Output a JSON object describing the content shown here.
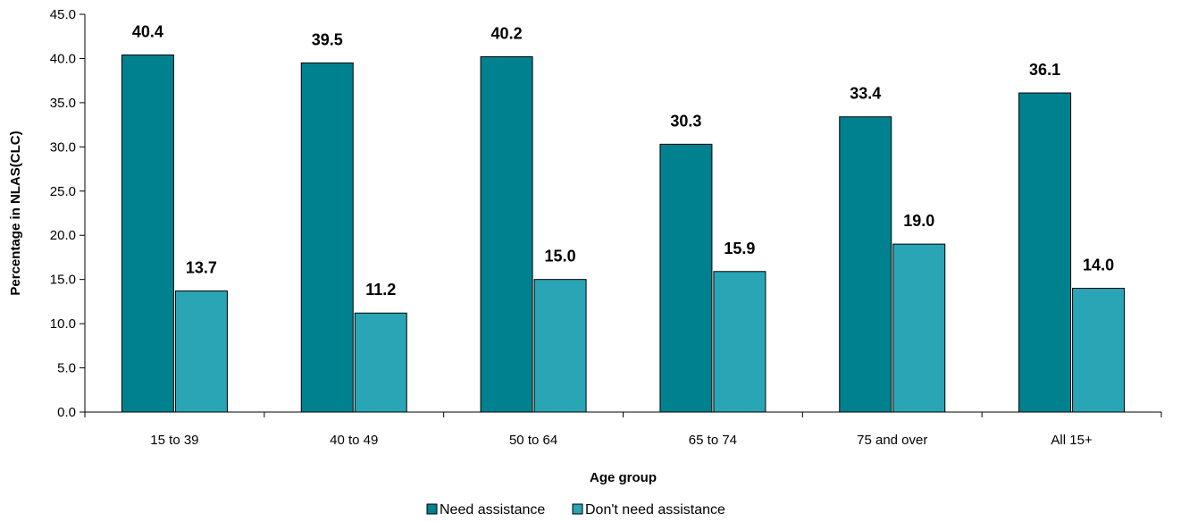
{
  "chart_data": {
    "type": "bar",
    "title": "",
    "xlabel": "Age group",
    "ylabel": "Percentage in NLAS(CLC)",
    "categories": [
      "15 to 39",
      "40 to 49",
      "50 to 64",
      "65 to 74",
      "75 and over",
      "All 15+"
    ],
    "series": [
      {
        "name": "Need assistance",
        "color": "#00818f",
        "values": [
          40.4,
          39.5,
          40.2,
          30.3,
          33.4,
          36.1
        ]
      },
      {
        "name": "Don't need assistance",
        "color": "#2aa5b5",
        "values": [
          13.7,
          11.2,
          15.0,
          15.9,
          19.0,
          14.0
        ]
      }
    ],
    "ylim": [
      0,
      45
    ],
    "ytick_step": 5,
    "ytick_decimals": 1,
    "value_decimals": 1,
    "grid": false,
    "legend_position": "bottom-center"
  }
}
